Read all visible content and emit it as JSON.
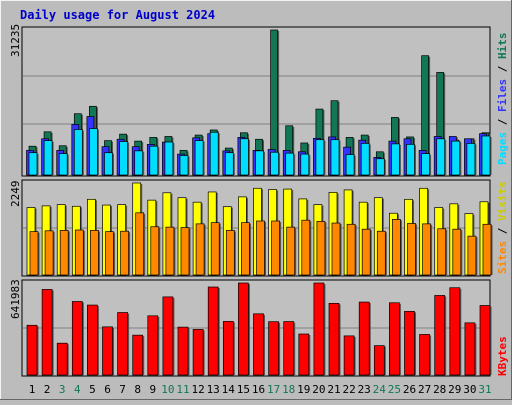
{
  "title": "Daily usage for August 2024",
  "colors": {
    "background": "#bcbcbc",
    "title": "#0000cc",
    "pages": "#00ddff",
    "files": "#3333ff",
    "hits": "#117755",
    "visits": "#ffff00",
    "sites": "#ff8800",
    "kbytes": "#ff0000",
    "weekday_label": "#000000",
    "weekend_label": "#117755"
  },
  "chart_data": [
    {
      "type": "bar",
      "name": "hits-files-pages",
      "categories": [
        "1",
        "2",
        "3",
        "4",
        "5",
        "6",
        "7",
        "8",
        "9",
        "10",
        "11",
        "12",
        "13",
        "14",
        "15",
        "16",
        "17",
        "18",
        "19",
        "20",
        "21",
        "22",
        "23",
        "24",
        "25",
        "26",
        "27",
        "28",
        "29",
        "30",
        "31"
      ],
      "ymax_label": "31235",
      "ylim": [
        0,
        31235
      ],
      "axis_label_parts": [
        "Pages",
        "/",
        "Files",
        "/",
        "Hits"
      ],
      "series": [
        {
          "name": "Hits",
          "values": [
            6200,
            9300,
            6300,
            13200,
            14800,
            7400,
            8800,
            7300,
            8100,
            8300,
            5300,
            8600,
            9700,
            5800,
            9100,
            7700,
            31235,
            10600,
            6900,
            14200,
            16000,
            8100,
            8600,
            5000,
            12400,
            8200,
            25700,
            22100,
            7500,
            7800,
            9100
          ]
        },
        {
          "name": "Files",
          "values": [
            5300,
            7800,
            5300,
            10900,
            12600,
            6100,
            7700,
            6100,
            6600,
            7100,
            4500,
            8000,
            8900,
            5200,
            8100,
            5300,
            5500,
            5300,
            5000,
            7900,
            8200,
            6000,
            7500,
            3800,
            7300,
            7800,
            5300,
            8300,
            8300,
            7800,
            8900
          ]
        },
        {
          "name": "Pages",
          "values": [
            4800,
            7400,
            4600,
            9800,
            10000,
            4800,
            7200,
            5200,
            6200,
            7100,
            4200,
            7400,
            9200,
            4800,
            7800,
            5200,
            4900,
            4700,
            4500,
            7600,
            7600,
            4400,
            6800,
            3500,
            6700,
            6600,
            4600,
            7800,
            7300,
            6800,
            8400
          ]
        }
      ]
    },
    {
      "type": "bar",
      "name": "visits-sites",
      "categories": [
        "1",
        "2",
        "3",
        "4",
        "5",
        "6",
        "7",
        "8",
        "9",
        "10",
        "11",
        "12",
        "13",
        "14",
        "15",
        "16",
        "17",
        "18",
        "19",
        "20",
        "21",
        "22",
        "23",
        "24",
        "25",
        "26",
        "27",
        "28",
        "29",
        "30",
        "31"
      ],
      "ymax_label": "2249",
      "ylim": [
        0,
        2249
      ],
      "axis_label_parts": [
        "Sites",
        "/",
        "Visits"
      ],
      "series": [
        {
          "name": "Visits",
          "values": [
            1650,
            1690,
            1720,
            1680,
            1850,
            1710,
            1720,
            2249,
            1830,
            2010,
            1890,
            1780,
            2030,
            1670,
            1910,
            2120,
            2090,
            2100,
            1860,
            1720,
            2020,
            2080,
            1780,
            1890,
            1510,
            1850,
            2120,
            1650,
            1740,
            1500,
            1790
          ]
        },
        {
          "name": "Sites",
          "values": [
            1060,
            1080,
            1090,
            1100,
            1090,
            1060,
            1070,
            1520,
            1180,
            1170,
            1160,
            1250,
            1280,
            1090,
            1280,
            1320,
            1320,
            1170,
            1340,
            1310,
            1270,
            1240,
            1120,
            1070,
            1360,
            1260,
            1250,
            1130,
            1120,
            950,
            1240
          ]
        }
      ]
    },
    {
      "type": "bar",
      "name": "kbytes",
      "categories": [
        "1",
        "2",
        "3",
        "4",
        "5",
        "6",
        "7",
        "8",
        "9",
        "10",
        "11",
        "12",
        "13",
        "14",
        "15",
        "16",
        "17",
        "18",
        "19",
        "20",
        "21",
        "22",
        "23",
        "24",
        "25",
        "26",
        "27",
        "28",
        "29",
        "30",
        "31"
      ],
      "ymax_label": "641983",
      "ylim": [
        0,
        641983
      ],
      "axis_label_parts": [
        "KBytes"
      ],
      "series": [
        {
          "name": "KBytes",
          "values": [
            347000,
            597000,
            222000,
            513000,
            488000,
            336000,
            436000,
            278000,
            413000,
            545000,
            334000,
            318000,
            614000,
            374000,
            641983,
            427000,
            372000,
            373000,
            286000,
            641983,
            500000,
            273000,
            509000,
            205000,
            504000,
            444000,
            283000,
            555000,
            609000,
            364000,
            485000
          ]
        }
      ]
    }
  ],
  "x_labels": [
    {
      "text": "1",
      "weekend": false
    },
    {
      "text": "2",
      "weekend": false
    },
    {
      "text": "3",
      "weekend": true
    },
    {
      "text": "4",
      "weekend": true
    },
    {
      "text": "5",
      "weekend": false
    },
    {
      "text": "6",
      "weekend": false
    },
    {
      "text": "7",
      "weekend": false
    },
    {
      "text": "8",
      "weekend": false
    },
    {
      "text": "9",
      "weekend": false
    },
    {
      "text": "10",
      "weekend": true
    },
    {
      "text": "11",
      "weekend": true
    },
    {
      "text": "12",
      "weekend": false
    },
    {
      "text": "13",
      "weekend": false
    },
    {
      "text": "14",
      "weekend": false
    },
    {
      "text": "15",
      "weekend": false
    },
    {
      "text": "16",
      "weekend": false
    },
    {
      "text": "17",
      "weekend": true
    },
    {
      "text": "18",
      "weekend": true
    },
    {
      "text": "19",
      "weekend": false
    },
    {
      "text": "20",
      "weekend": false
    },
    {
      "text": "21",
      "weekend": false
    },
    {
      "text": "22",
      "weekend": false
    },
    {
      "text": "23",
      "weekend": false
    },
    {
      "text": "24",
      "weekend": true
    },
    {
      "text": "25",
      "weekend": true
    },
    {
      "text": "26",
      "weekend": false
    },
    {
      "text": "27",
      "weekend": false
    },
    {
      "text": "28",
      "weekend": false
    },
    {
      "text": "29",
      "weekend": false
    },
    {
      "text": "30",
      "weekend": false
    },
    {
      "text": "31",
      "weekend": true
    }
  ]
}
